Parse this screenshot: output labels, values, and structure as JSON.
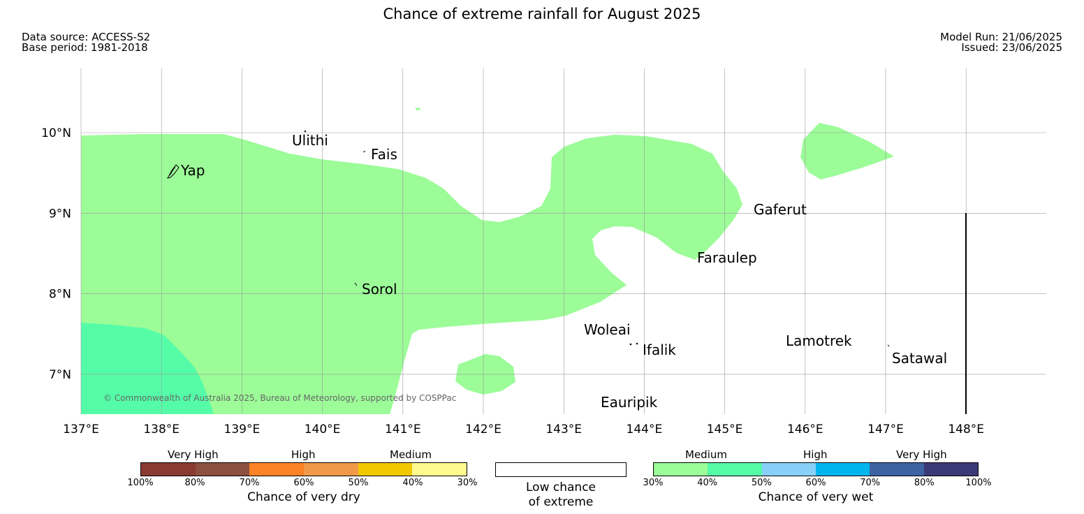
{
  "title": "Chance of extreme rainfall for August 2025",
  "meta": {
    "data_source": "Data source: ACCESS-S2",
    "base_period": "Base period: 1981-2018",
    "model_run": "Model Run: 21/06/2025",
    "issued": "Issued: 23/06/2025"
  },
  "map": {
    "lon_labels": [
      "137°E",
      "138°E",
      "139°E",
      "140°E",
      "141°E",
      "142°E",
      "143°E",
      "144°E",
      "145°E",
      "146°E",
      "147°E",
      "148°E"
    ],
    "lat_labels": [
      "10°N",
      "9°N",
      "8°N",
      "7°N"
    ],
    "places": {
      "ulithi": "Ulithi",
      "fais": "Fais",
      "yap": "Yap",
      "gaferut": "Gaferut",
      "faraulep": "Faraulep",
      "sorol": "Sorol",
      "woleai": "Woleai",
      "ifalik": "Ifalik",
      "lamotrek": "Lamotrek",
      "satawal": "Satawal",
      "eauripik": "Eauripik"
    },
    "copyright": "© Commonwealth of Australia 2025, Bureau of Meteorology, supported by COSPPac",
    "colors": {
      "medium_wet": "#9cfc98",
      "high_wet_40_50": "#55fca8"
    }
  },
  "legend": {
    "dry": {
      "title": "Chance of very dry",
      "categories": [
        "Very High",
        "High",
        "Medium"
      ],
      "ticks": [
        "100%",
        "80%",
        "70%",
        "60%",
        "50%",
        "40%",
        "30%"
      ],
      "colors": [
        "#8a3a32",
        "#8c5040",
        "#fc8226",
        "#f09a48",
        "#f2c800",
        "#fefa90"
      ]
    },
    "low": {
      "label_line1": "Low chance",
      "label_line2": "of extreme"
    },
    "wet": {
      "title": "Chance of very wet",
      "categories": [
        "Medium",
        "High",
        "Very High"
      ],
      "ticks": [
        "30%",
        "40%",
        "50%",
        "60%",
        "70%",
        "80%",
        "100%"
      ],
      "colors": [
        "#9cfc98",
        "#55fca8",
        "#88d0f8",
        "#00b4ee",
        "#3c64a2",
        "#3a3a78"
      ]
    }
  }
}
